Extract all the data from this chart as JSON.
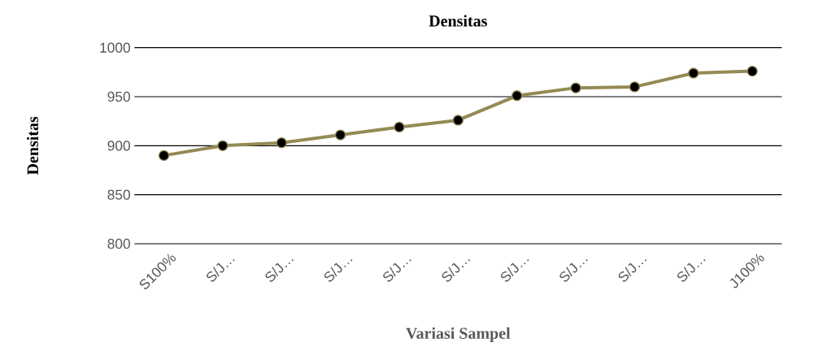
{
  "chart_data": {
    "type": "line",
    "title": "Densitas",
    "xlabel": "Variasi Sampel",
    "ylabel": "Densitas",
    "categories": [
      "S100%",
      "S/J…",
      "S/J…",
      "S/J…",
      "S/J…",
      "S/J…",
      "S/J…",
      "S/J…",
      "S/J…",
      "S/J…",
      "J100%"
    ],
    "series": [
      {
        "color": "#948a54",
        "values": [
          890,
          900,
          903,
          911,
          919,
          926,
          951,
          959,
          960,
          974,
          976
        ]
      }
    ],
    "ylim": [
      800,
      1000
    ],
    "yticks": [
      800,
      850,
      900,
      950,
      1000
    ],
    "grid": "y",
    "marker": "circle",
    "line_style": "solid"
  }
}
